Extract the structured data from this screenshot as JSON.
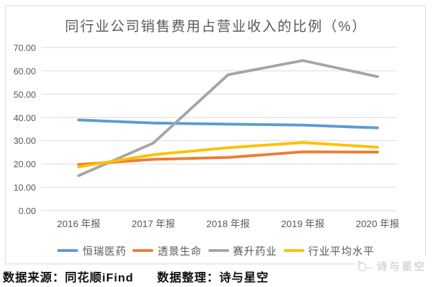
{
  "chart": {
    "title": "同行业公司销售费用占营业收入的比例（%）"
  },
  "chart_data": {
    "type": "line",
    "title": "同行业公司销售费用占营业收入的比例（%）",
    "categories": [
      "2016 年报",
      "2017 年报",
      "2018 年报",
      "2019 年报",
      "2020 年报"
    ],
    "series": [
      {
        "name": "恒瑞医药",
        "color": "#5B9BD5",
        "values": [
          38.9,
          37.6,
          37.1,
          36.7,
          35.5
        ]
      },
      {
        "name": "透景生命",
        "color": "#ED7D31",
        "values": [
          19.8,
          22.0,
          22.8,
          25.2,
          25.1
        ]
      },
      {
        "name": "赛升药业",
        "color": "#A5A5A5",
        "values": [
          15.0,
          29.0,
          58.3,
          64.4,
          57.5
        ]
      },
      {
        "name": "行业平均水平",
        "color": "#FFC000",
        "values": [
          18.8,
          24.0,
          27.0,
          29.2,
          27.2
        ]
      }
    ],
    "ylim": [
      0,
      70
    ],
    "ytick_step": 10,
    "ytick_decimals": 2,
    "grid": true,
    "gridline_color": "#d9d9d9",
    "legend_position": "bottom",
    "xlabel": "",
    "ylabel": ""
  },
  "footer": {
    "source": "数据来源：同花顺iFind",
    "editor": "数据整理：诗与星空"
  },
  "watermark": {
    "text": "诗与星空"
  }
}
